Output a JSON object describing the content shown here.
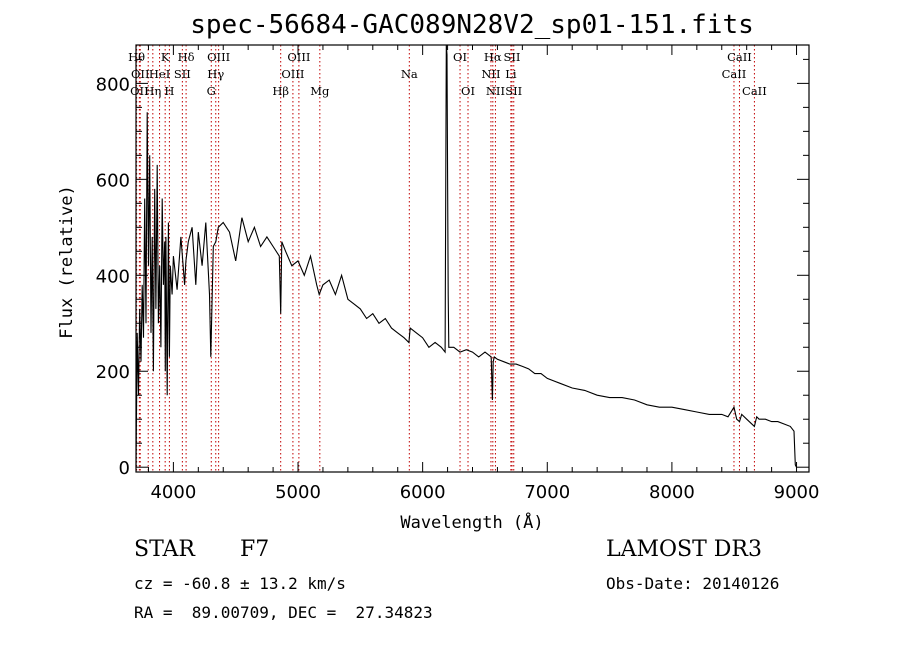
{
  "chart_data": {
    "type": "line",
    "title": "spec-56684-GAC089N28V2_sp01-151.fits",
    "xlabel": "Wavelength (Å)",
    "ylabel": "Flux (relative)",
    "xlim": [
      3700,
      9100
    ],
    "ylim": [
      -10,
      880
    ],
    "xticks": [
      4000,
      5000,
      6000,
      7000,
      8000,
      9000
    ],
    "yticks": [
      0,
      200,
      400,
      600,
      800
    ],
    "spectrum": {
      "x": [
        3700,
        3710,
        3720,
        3730,
        3740,
        3750,
        3760,
        3770,
        3780,
        3790,
        3800,
        3810,
        3820,
        3830,
        3840,
        3850,
        3860,
        3870,
        3880,
        3890,
        3900,
        3910,
        3920,
        3930,
        3935,
        3940,
        3950,
        3960,
        3968,
        3975,
        3990,
        4000,
        4030,
        4060,
        4090,
        4100,
        4120,
        4150,
        4180,
        4200,
        4230,
        4260,
        4290,
        4300,
        4320,
        4340,
        4360,
        4400,
        4450,
        4500,
        4550,
        4600,
        4650,
        4700,
        4750,
        4800,
        4850,
        4861,
        4870,
        4900,
        4950,
        5000,
        5050,
        5100,
        5150,
        5170,
        5200,
        5250,
        5300,
        5350,
        5400,
        5450,
        5500,
        5550,
        5600,
        5650,
        5700,
        5750,
        5800,
        5850,
        5890,
        5900,
        5950,
        6000,
        6050,
        6100,
        6150,
        6180,
        6190,
        6195,
        6200,
        6205,
        6210,
        6250,
        6300,
        6350,
        6400,
        6450,
        6500,
        6550,
        6560,
        6563,
        6566,
        6575,
        6600,
        6650,
        6700,
        6750,
        6800,
        6850,
        6900,
        6950,
        7000,
        7100,
        7200,
        7300,
        7400,
        7500,
        7600,
        7700,
        7800,
        7900,
        8000,
        8100,
        8200,
        8300,
        8400,
        8450,
        8498,
        8520,
        8542,
        8560,
        8600,
        8662,
        8680,
        8700,
        8750,
        8800,
        8850,
        8900,
        8950,
        8980,
        8990,
        9000
      ],
      "y": [
        0,
        280,
        150,
        330,
        220,
        380,
        270,
        560,
        300,
        740,
        420,
        650,
        280,
        480,
        200,
        580,
        330,
        630,
        300,
        420,
        250,
        560,
        380,
        470,
        200,
        480,
        150,
        510,
        230,
        420,
        360,
        440,
        370,
        480,
        380,
        430,
        470,
        500,
        380,
        490,
        420,
        510,
        360,
        230,
        460,
        470,
        500,
        510,
        490,
        430,
        520,
        470,
        500,
        460,
        480,
        460,
        440,
        320,
        470,
        450,
        420,
        430,
        400,
        440,
        380,
        360,
        380,
        390,
        360,
        400,
        350,
        340,
        330,
        310,
        320,
        300,
        310,
        290,
        280,
        270,
        260,
        290,
        280,
        270,
        250,
        260,
        250,
        240,
        880,
        860,
        600,
        360,
        250,
        250,
        240,
        245,
        240,
        230,
        240,
        230,
        140,
        180,
        220,
        230,
        225,
        220,
        215,
        215,
        210,
        205,
        195,
        195,
        185,
        175,
        165,
        160,
        150,
        145,
        145,
        140,
        130,
        125,
        125,
        120,
        115,
        110,
        110,
        105,
        125,
        100,
        95,
        110,
        100,
        85,
        105,
        100,
        100,
        95,
        95,
        90,
        85,
        75,
        5,
        0
      ]
    },
    "lines": [
      {
        "x": 3705,
        "label": "Hθ",
        "row": 1
      },
      {
        "x": 3727,
        "label": "OII",
        "row": 3
      },
      {
        "x": 3734,
        "label": "OII",
        "row": 2
      },
      {
        "x": 3798,
        "label": "",
        "row": 0
      },
      {
        "x": 3835,
        "label": "Hη",
        "row": 3
      },
      {
        "x": 3889,
        "label": "HeI",
        "row": 2
      },
      {
        "x": 3934,
        "label": "K",
        "row": 1
      },
      {
        "x": 3968,
        "label": "H",
        "row": 3
      },
      {
        "x": 4072,
        "label": "SII",
        "row": 2
      },
      {
        "x": 4102,
        "label": "Hδ",
        "row": 1
      },
      {
        "x": 4304,
        "label": "G",
        "row": 3
      },
      {
        "x": 4340,
        "label": "Hγ",
        "row": 2
      },
      {
        "x": 4363,
        "label": "OIII",
        "row": 1
      },
      {
        "x": 4861,
        "label": "Hβ",
        "row": 3
      },
      {
        "x": 4959,
        "label": "OIII",
        "row": 2
      },
      {
        "x": 5007,
        "label": "OIII",
        "row": 1
      },
      {
        "x": 5175,
        "label": "Mg",
        "row": 3
      },
      {
        "x": 5893,
        "label": "Na",
        "row": 2
      },
      {
        "x": 6300,
        "label": "OI",
        "row": 1
      },
      {
        "x": 6364,
        "label": "OI",
        "row": 3
      },
      {
        "x": 6548,
        "label": "NII",
        "row": 2
      },
      {
        "x": 6563,
        "label": "Hα",
        "row": 1
      },
      {
        "x": 6584,
        "label": "NII",
        "row": 3
      },
      {
        "x": 6708,
        "label": "Li",
        "row": 2
      },
      {
        "x": 6717,
        "label": "SII",
        "row": 1
      },
      {
        "x": 6731,
        "label": "SII",
        "row": 3
      },
      {
        "x": 8498,
        "label": "CaII",
        "row": 2
      },
      {
        "x": 8542,
        "label": "CaII",
        "row": 1
      },
      {
        "x": 8662,
        "label": "CaII",
        "row": 3
      }
    ]
  },
  "info": {
    "class": "STAR",
    "subclass": "F7",
    "survey": "LAMOST DR3",
    "cz": "cz = -60.8 ± 13.2 km/s",
    "obs_date": "Obs-Date: 20140126",
    "radec": "RA =  89.00709, DEC =  27.34823"
  },
  "colors": {
    "line_marker": "#c00000",
    "spectrum": "#000000",
    "axes": "#000000"
  }
}
